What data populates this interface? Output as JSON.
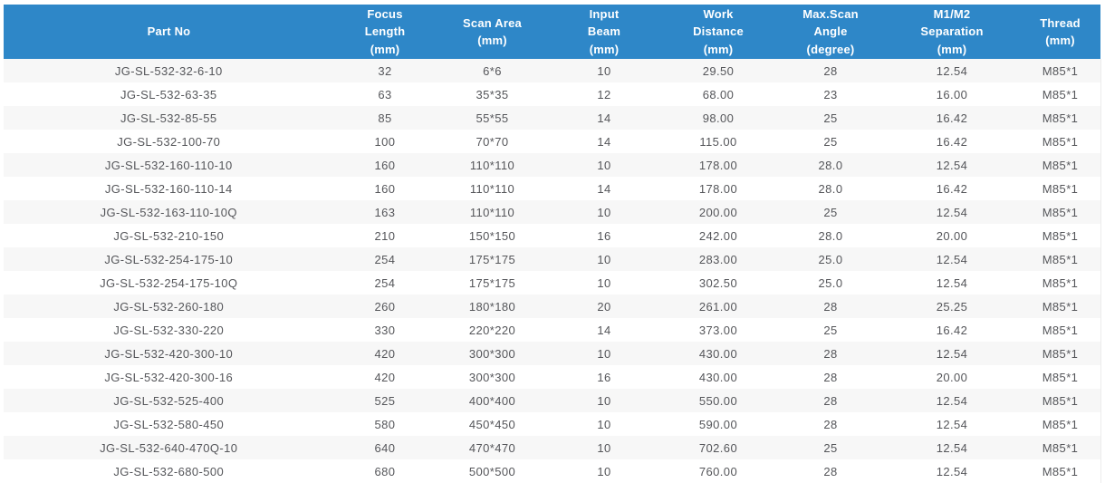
{
  "theme": {
    "header_bg": "#2e87c8",
    "header_text": "#ffffff",
    "row_bg": "#ffffff",
    "row_alt_bg": "#f7f7f7",
    "cell_text": "#55565a",
    "table_border": "#ececec"
  },
  "table": {
    "columns": [
      {
        "id": "part_no",
        "label": "Part No"
      },
      {
        "id": "focus_length",
        "label": "Focus\nLength\n(mm)"
      },
      {
        "id": "scan_area",
        "label": "Scan Area\n(mm)"
      },
      {
        "id": "input_beam",
        "label": "Input\nBeam\n(mm)"
      },
      {
        "id": "work_distance",
        "label": "Work\nDistance\n(mm)"
      },
      {
        "id": "max_scan_angle",
        "label": "Max.Scan\nAngle\n(degree)"
      },
      {
        "id": "m1_m2_separation",
        "label": "M1/M2\nSeparation\n(mm)"
      },
      {
        "id": "thread",
        "label": "Thread\n(mm)"
      }
    ],
    "rows": [
      [
        "JG-SL-532-32-6-10",
        "32",
        "6*6",
        "10",
        "29.50",
        "28",
        "12.54",
        "M85*1"
      ],
      [
        "JG-SL-532-63-35",
        "63",
        "35*35",
        "12",
        "68.00",
        "23",
        "16.00",
        "M85*1"
      ],
      [
        "JG-SL-532-85-55",
        "85",
        "55*55",
        "14",
        "98.00",
        "25",
        "16.42",
        "M85*1"
      ],
      [
        "JG-SL-532-100-70",
        "100",
        "70*70",
        "14",
        "115.00",
        "25",
        "16.42",
        "M85*1"
      ],
      [
        "JG-SL-532-160-110-10",
        "160",
        "110*110",
        "10",
        "178.00",
        "28.0",
        "12.54",
        "M85*1"
      ],
      [
        "JG-SL-532-160-110-14",
        "160",
        "110*110",
        "14",
        "178.00",
        "28.0",
        "16.42",
        "M85*1"
      ],
      [
        "JG-SL-532-163-110-10Q",
        "163",
        "110*110",
        "10",
        "200.00",
        "25",
        "12.54",
        "M85*1"
      ],
      [
        "JG-SL-532-210-150",
        "210",
        "150*150",
        "16",
        "242.00",
        "28.0",
        "20.00",
        "M85*1"
      ],
      [
        "JG-SL-532-254-175-10",
        "254",
        "175*175",
        "10",
        "283.00",
        "25.0",
        "12.54",
        "M85*1"
      ],
      [
        "JG-SL-532-254-175-10Q",
        "254",
        "175*175",
        "10",
        "302.50",
        "25.0",
        "12.54",
        "M85*1"
      ],
      [
        "JG-SL-532-260-180",
        "260",
        "180*180",
        "20",
        "261.00",
        "28",
        "25.25",
        "M85*1"
      ],
      [
        "JG-SL-532-330-220",
        "330",
        "220*220",
        "14",
        "373.00",
        "25",
        "16.42",
        "M85*1"
      ],
      [
        "JG-SL-532-420-300-10",
        "420",
        "300*300",
        "10",
        "430.00",
        "28",
        "12.54",
        "M85*1"
      ],
      [
        "JG-SL-532-420-300-16",
        "420",
        "300*300",
        "16",
        "430.00",
        "28",
        "20.00",
        "M85*1"
      ],
      [
        "JG-SL-532-525-400",
        "525",
        "400*400",
        "10",
        "550.00",
        "28",
        "12.54",
        "M85*1"
      ],
      [
        "JG-SL-532-580-450",
        "580",
        "450*450",
        "10",
        "590.00",
        "28",
        "12.54",
        "M85*1"
      ],
      [
        "JG-SL-532-640-470Q-10",
        "640",
        "470*470",
        "10",
        "702.60",
        "25",
        "12.54",
        "M85*1"
      ],
      [
        "JG-SL-532-680-500",
        "680",
        "500*500",
        "10",
        "760.00",
        "28",
        "12.54",
        "M85*1"
      ]
    ]
  }
}
